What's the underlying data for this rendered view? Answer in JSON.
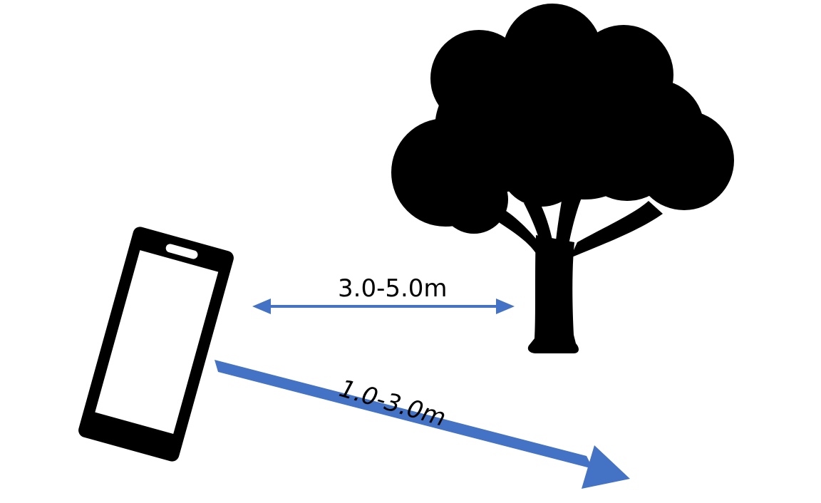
{
  "diagram": {
    "colors": {
      "arrow": "#4472c4",
      "silhouette": "#000000",
      "screen": "#ffffff",
      "background": "#ffffff"
    },
    "icons": [
      "smartphone-icon",
      "tree-icon"
    ],
    "labels": {
      "phone_to_tree": "3.0-5.0m",
      "walking_distance": "1.0-3.0m"
    }
  }
}
